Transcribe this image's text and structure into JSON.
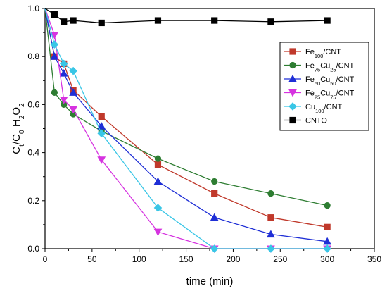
{
  "chart_data": {
    "type": "line",
    "xlabel": "time (min)",
    "ylabel": {
      "parts": [
        {
          "t": "C",
          "s": "n"
        },
        {
          "t": "t",
          "s": "sub"
        },
        {
          "t": "/C",
          "s": "n"
        },
        {
          "t": "0",
          "s": "sub"
        },
        {
          "t": " H",
          "s": "n"
        },
        {
          "t": "2",
          "s": "sub"
        },
        {
          "t": "O",
          "s": "n"
        },
        {
          "t": "2",
          "s": "sub"
        }
      ]
    },
    "xlim": [
      0,
      350
    ],
    "ylim": [
      0.0,
      1.0
    ],
    "xticks": [
      "0",
      "50",
      "100",
      "150",
      "200",
      "250",
      "300",
      "350"
    ],
    "yticks": [
      "0.0",
      "0.2",
      "0.4",
      "0.6",
      "0.8",
      "1.0"
    ],
    "legend_position": "top-right",
    "grid": false,
    "series": [
      {
        "name": "Fe100/CNT",
        "label_parts": [
          {
            "t": "Fe",
            "s": "n"
          },
          {
            "t": "100",
            "s": "sub"
          },
          {
            "t": "/CNT",
            "s": "n"
          }
        ],
        "color": "#c0392b",
        "marker": "square",
        "x": [
          0,
          10,
          20,
          30,
          60,
          120,
          180,
          240,
          300
        ],
        "y": [
          1.0,
          0.8,
          0.77,
          0.66,
          0.55,
          0.35,
          0.23,
          0.13,
          0.09
        ]
      },
      {
        "name": "Fe75Cu25/CNT",
        "label_parts": [
          {
            "t": "Fe",
            "s": "n"
          },
          {
            "t": "75",
            "s": "sub"
          },
          {
            "t": "Cu",
            "s": "n"
          },
          {
            "t": "25",
            "s": "sub"
          },
          {
            "t": "/CNT",
            "s": "n"
          }
        ],
        "color": "#2e7d32",
        "marker": "circle",
        "x": [
          0,
          10,
          20,
          30,
          60,
          120,
          180,
          240,
          300
        ],
        "y": [
          1.0,
          0.65,
          0.6,
          0.56,
          0.49,
          0.375,
          0.28,
          0.23,
          0.18
        ]
      },
      {
        "name": "Fe50Cu50/CNT",
        "label_parts": [
          {
            "t": "Fe",
            "s": "n"
          },
          {
            "t": "50",
            "s": "sub"
          },
          {
            "t": "Cu",
            "s": "n"
          },
          {
            "t": "50",
            "s": "sub"
          },
          {
            "t": "/CNT",
            "s": "n"
          }
        ],
        "color": "#1f2fd6",
        "marker": "triangle-up",
        "x": [
          0,
          10,
          20,
          30,
          60,
          120,
          180,
          240,
          300
        ],
        "y": [
          1.0,
          0.8,
          0.73,
          0.65,
          0.51,
          0.28,
          0.13,
          0.06,
          0.03
        ]
      },
      {
        "name": "Fe25Cu75/CNT",
        "label_parts": [
          {
            "t": "Fe",
            "s": "n"
          },
          {
            "t": "25",
            "s": "sub"
          },
          {
            "t": "Cu",
            "s": "n"
          },
          {
            "t": "75",
            "s": "sub"
          },
          {
            "t": "/CNT",
            "s": "n"
          }
        ],
        "color": "#d633e0",
        "marker": "triangle-down",
        "x": [
          0,
          10,
          20,
          30,
          60,
          120,
          180,
          240,
          300
        ],
        "y": [
          1.0,
          0.89,
          0.62,
          0.58,
          0.37,
          0.07,
          0.0,
          0.0,
          0.0
        ]
      },
      {
        "name": "Cu100/CNT",
        "label_parts": [
          {
            "t": "Cu",
            "s": "n"
          },
          {
            "t": "100",
            "s": "sub"
          },
          {
            "t": "/CNT",
            "s": "n"
          }
        ],
        "color": "#39c6e6",
        "marker": "diamond",
        "x": [
          0,
          10,
          20,
          30,
          60,
          120,
          180,
          240,
          300
        ],
        "y": [
          1.0,
          0.85,
          0.77,
          0.74,
          0.48,
          0.17,
          0.0,
          0.0,
          0.0
        ]
      },
      {
        "name": "CNTO",
        "label_parts": [
          {
            "t": "CNTO",
            "s": "n"
          }
        ],
        "color": "#000000",
        "marker": "square",
        "x": [
          0,
          10,
          20,
          30,
          60,
          120,
          180,
          240,
          300
        ],
        "y": [
          1.0,
          0.975,
          0.945,
          0.95,
          0.94,
          0.95,
          0.95,
          0.945,
          0.95
        ]
      }
    ]
  }
}
